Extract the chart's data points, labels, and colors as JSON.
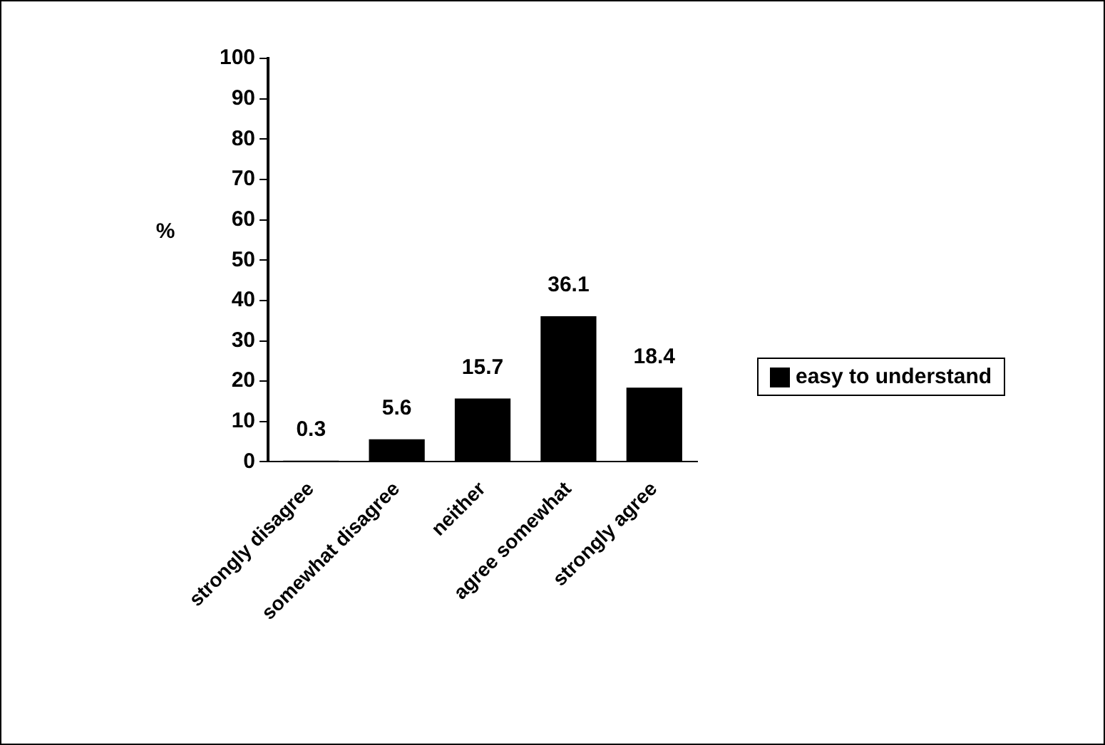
{
  "chart_data": {
    "type": "bar",
    "ylabel": "%",
    "categories": [
      "strongly disagree",
      "somewhat disagree",
      "neither",
      "agree somewhat",
      "strongly agree"
    ],
    "series": [
      {
        "name": "easy to understand",
        "color": "#000000",
        "values": [
          0.3,
          5.6,
          15.7,
          36.1,
          18.4
        ]
      }
    ],
    "ylim": [
      0,
      100
    ],
    "yticks": [
      0,
      10,
      20,
      30,
      40,
      50,
      60,
      70,
      80,
      90,
      100
    ],
    "data_labels": true,
    "grid": false,
    "legend": "right"
  }
}
